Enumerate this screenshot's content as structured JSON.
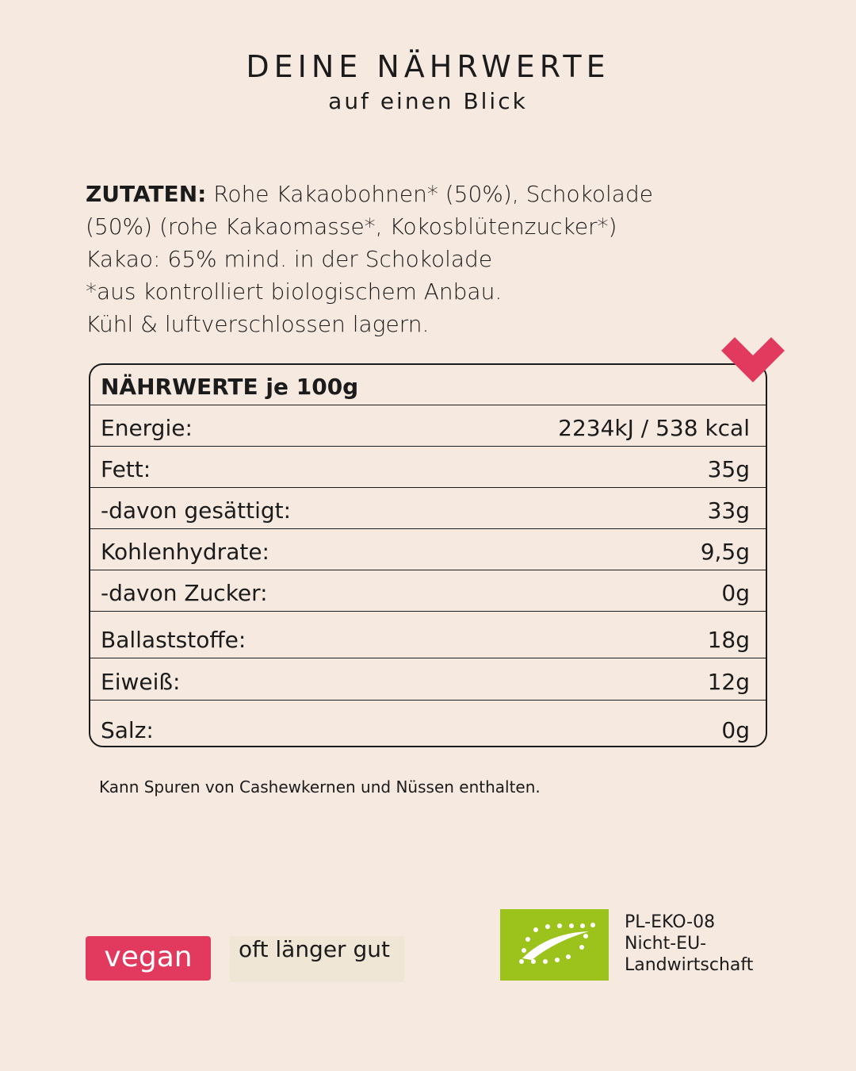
{
  "header": {
    "title": "DEINE NÄHRWERTE",
    "subtitle": "auf einen Blick"
  },
  "ingredients": {
    "label": "ZUTATEN:",
    "lines": [
      "Rohe Kakaobohnen* (50%), Schokolade",
      "(50%) (rohe Kakaomasse*, Kokosblütenzucker*)",
      "Kakao: 65% mind. in der Schokolade",
      "*aus kontrolliert biologischem Anbau.",
      "Kühl & luftverschlossen lagern."
    ]
  },
  "table": {
    "header": "NÄHRWERTE je 100g",
    "rows": [
      [
        "Energie:",
        "2234kJ / 538 kcal"
      ],
      [
        "Fett:",
        "35g"
      ],
      [
        "-davon gesättigt:",
        "33g"
      ],
      [
        "Kohlenhydrate:",
        "9,5g"
      ],
      [
        "-davon Zucker:",
        "0g"
      ],
      [
        "Ballaststoffe:",
        "18g"
      ],
      [
        "Eiweiß:",
        "12g"
      ],
      [
        "Salz:",
        "0g"
      ]
    ]
  },
  "note": "Kann Spuren von Cashewkernen und Nüssen enthalten.",
  "badges": {
    "vegan": "vegan",
    "shelf": "oft länger gut"
  },
  "organic": {
    "lines": [
      "PL-EKO-08",
      "Nicht-EU-",
      "Landwirtschaft"
    ]
  }
}
